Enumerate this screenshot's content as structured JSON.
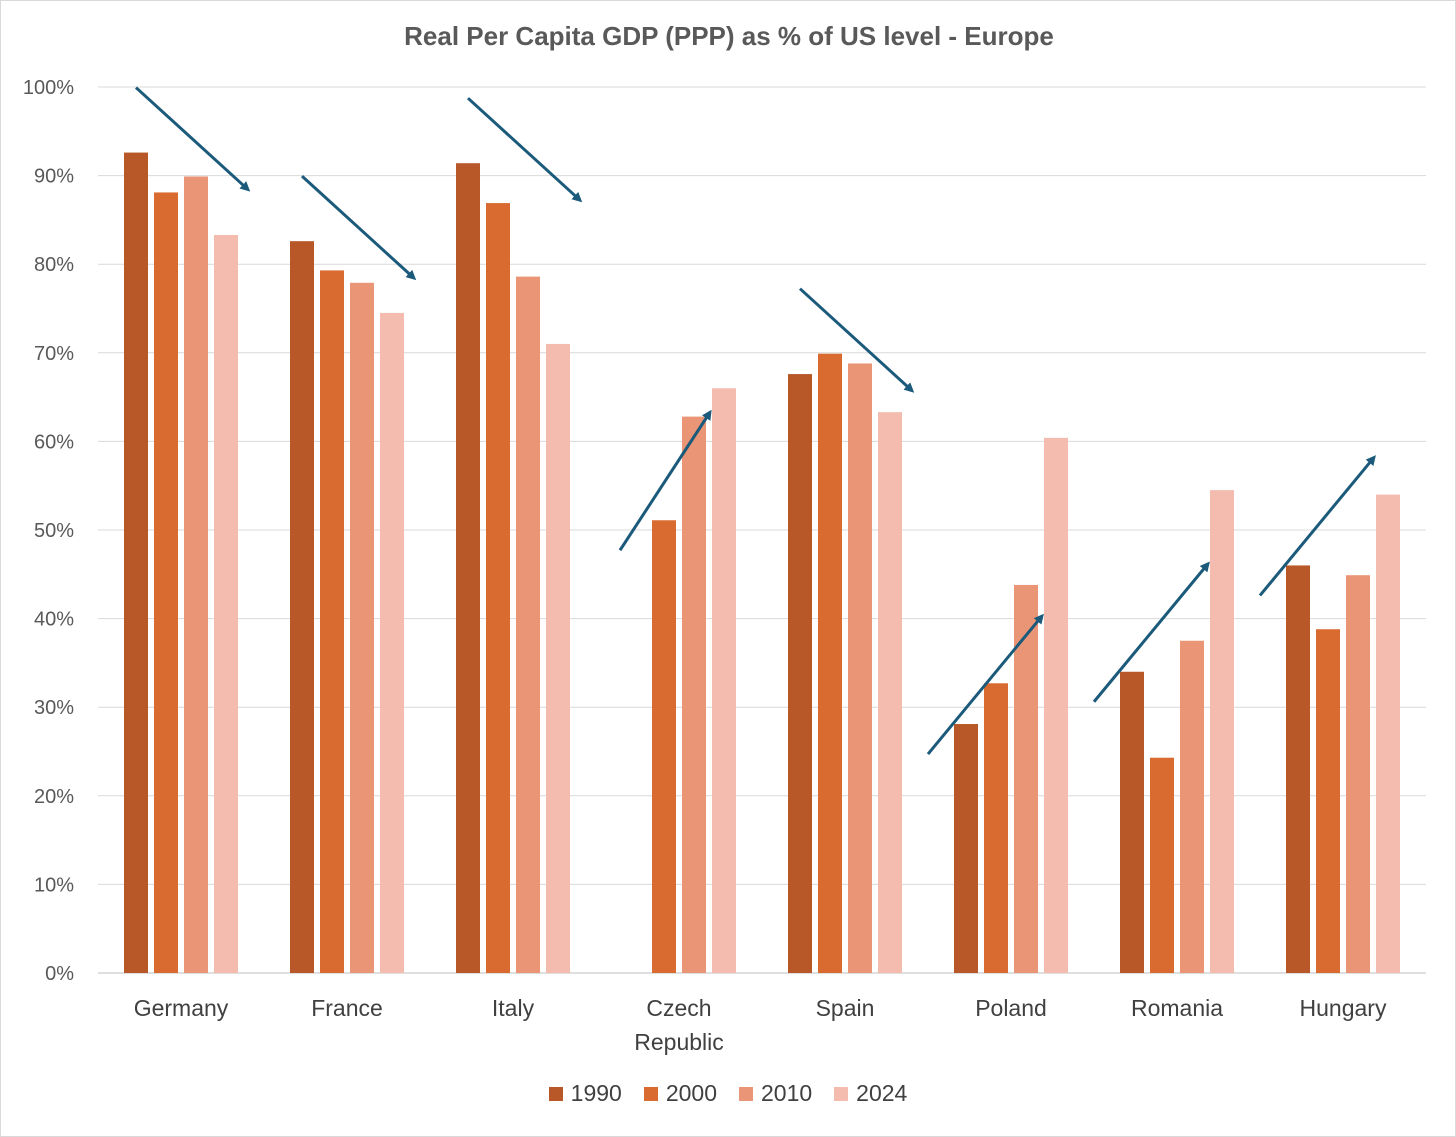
{
  "chart_data": {
    "type": "bar",
    "title": "Real Per Capita GDP (PPP) as % of US level - Europe",
    "xlabel": "",
    "ylabel": "",
    "ylim": [
      0,
      100
    ],
    "yticks": [
      "0%",
      "10%",
      "20%",
      "30%",
      "40%",
      "50%",
      "60%",
      "70%",
      "80%",
      "90%",
      "100%"
    ],
    "categories": [
      "Germany",
      "France",
      "Italy",
      "Czech Republic",
      "Spain",
      "Poland",
      "Romania",
      "Hungary"
    ],
    "series": [
      {
        "name": "1990",
        "color": "#b85828",
        "values": [
          92.6,
          82.6,
          91.4,
          null,
          67.6,
          28.1,
          34.0,
          46.0
        ]
      },
      {
        "name": "2000",
        "color": "#d96b30",
        "values": [
          88.1,
          79.3,
          86.9,
          51.1,
          69.9,
          32.7,
          24.3,
          38.8
        ]
      },
      {
        "name": "2010",
        "color": "#ea9575",
        "values": [
          89.9,
          77.9,
          78.6,
          62.8,
          68.8,
          43.8,
          37.5,
          44.9
        ]
      },
      {
        "name": "2024",
        "color": "#f3bcae",
        "values": [
          83.3,
          74.5,
          71.0,
          66.0,
          63.3,
          60.4,
          54.5,
          54.0
        ]
      }
    ],
    "trend_arrows": [
      {
        "category": "Germany",
        "direction": "down"
      },
      {
        "category": "France",
        "direction": "down"
      },
      {
        "category": "Italy",
        "direction": "down"
      },
      {
        "category": "Czech Republic",
        "direction": "up"
      },
      {
        "category": "Spain",
        "direction": "down"
      },
      {
        "category": "Poland",
        "direction": "up"
      },
      {
        "category": "Romania",
        "direction": "up"
      },
      {
        "category": "Hungary",
        "direction": "up"
      }
    ],
    "arrow_color": "#1b5a7a",
    "grid": true,
    "legend_position": "bottom"
  }
}
